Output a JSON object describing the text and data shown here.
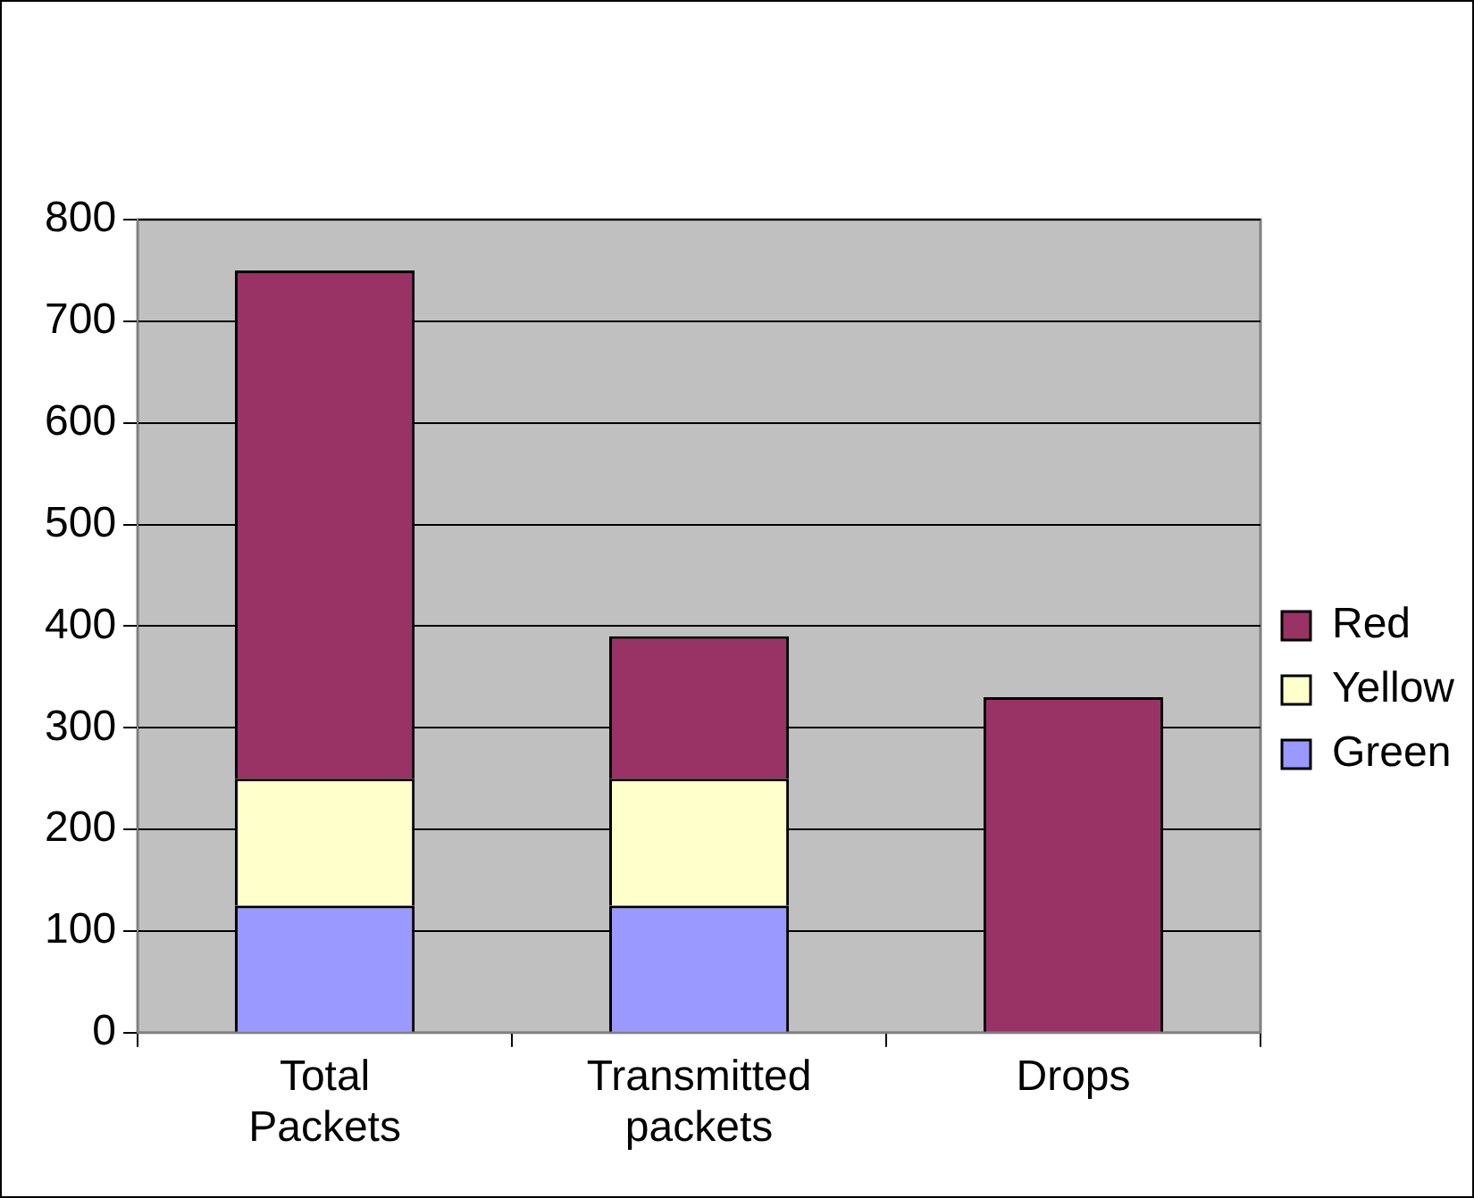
{
  "chart_data": {
    "type": "bar",
    "stacked": true,
    "categories": [
      "Total Packets",
      "Transmitted packets",
      "Drops"
    ],
    "series": [
      {
        "name": "Green",
        "color": "#9999ff",
        "values": [
          125,
          125,
          0
        ]
      },
      {
        "name": "Yellow",
        "color": "#ffffcc",
        "values": [
          125,
          125,
          0
        ]
      },
      {
        "name": "Red",
        "color": "#993366",
        "values": [
          500,
          140,
          330
        ]
      }
    ],
    "ylim": [
      0,
      800
    ],
    "yticks": [
      0,
      100,
      200,
      300,
      400,
      500,
      600,
      700,
      800
    ],
    "grid": "y",
    "legend": "right"
  }
}
